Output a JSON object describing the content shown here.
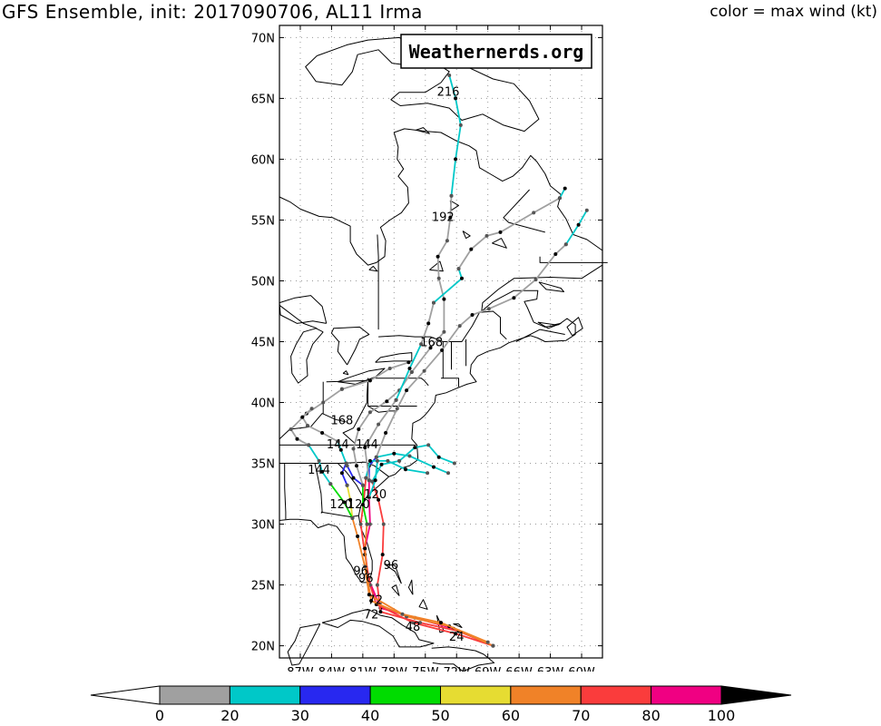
{
  "header": {
    "title": "GFS Ensemble, init: 2017090706, AL11 Irma",
    "color_legend": "color = max wind (kt)"
  },
  "watermark": "Weathernerds.org",
  "map": {
    "lat_ticks": [
      "70N",
      "65N",
      "60N",
      "55N",
      "50N",
      "45N",
      "40N",
      "35N",
      "30N",
      "25N",
      "20N"
    ],
    "lon_ticks": [
      "87W",
      "84W",
      "81W",
      "78W",
      "75W",
      "72W",
      "69W",
      "66W",
      "63W",
      "60W"
    ],
    "forecast_hour_labels": [
      {
        "text": "216",
        "lon": -72.8,
        "lat": 65.6
      },
      {
        "text": "192",
        "lon": -73.3,
        "lat": 55.3
      },
      {
        "text": "168",
        "lon": -74.4,
        "lat": 45.0
      },
      {
        "text": "168",
        "lon": -83.0,
        "lat": 38.6
      },
      {
        "text": "144",
        "lon": -83.4,
        "lat": 36.6
      },
      {
        "text": "144",
        "lon": -80.6,
        "lat": 36.6
      },
      {
        "text": "144",
        "lon": -85.2,
        "lat": 34.5
      },
      {
        "text": "120",
        "lon": -83.1,
        "lat": 31.7
      },
      {
        "text": "120",
        "lon": -81.4,
        "lat": 31.7
      },
      {
        "text": "120",
        "lon": -79.8,
        "lat": 32.5
      },
      {
        "text": "96",
        "lon": -78.3,
        "lat": 26.7
      },
      {
        "text": "96",
        "lon": -81.2,
        "lat": 26.2
      },
      {
        "text": "96",
        "lon": -80.7,
        "lat": 25.6
      },
      {
        "text": "72",
        "lon": -79.8,
        "lat": 23.8
      },
      {
        "text": "72",
        "lon": -80.2,
        "lat": 22.6
      },
      {
        "text": "48",
        "lon": -76.2,
        "lat": 21.6
      },
      {
        "text": "24",
        "lon": -72.0,
        "lat": 20.8
      }
    ]
  },
  "colorbar": {
    "tick_labels": [
      "0",
      "20",
      "30",
      "40",
      "50",
      "60",
      "70",
      "80",
      "100"
    ],
    "colors": [
      "#a0a0a0",
      "#00c8c8",
      "#2828f0",
      "#00dc00",
      "#e6dc32",
      "#f08228",
      "#fa3c3c",
      "#f00082"
    ]
  },
  "colors": {
    "gray": "#a0a0a0",
    "cyan": "#00c8c8",
    "blue": "#2828f0",
    "green": "#00dc00",
    "yellow": "#e6dc32",
    "orange": "#f08228",
    "red": "#fa3c3c",
    "magenta": "#f00082"
  }
}
